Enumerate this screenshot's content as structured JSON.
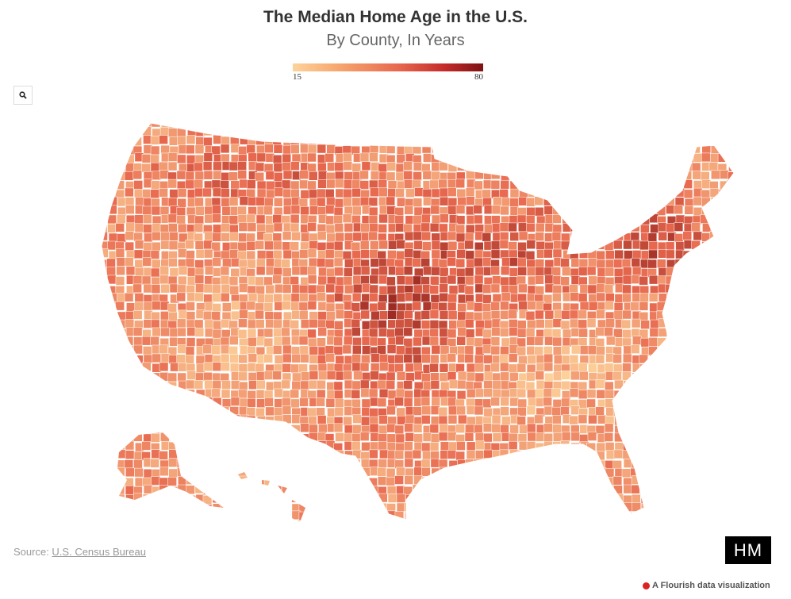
{
  "header": {
    "title": "The Median Home Age in the U.S.",
    "subtitle": "By County, In Years"
  },
  "legend": {
    "min_label": "15",
    "max_label": "80"
  },
  "controls": {
    "zoom_icon": "search-icon"
  },
  "footer": {
    "source_prefix": "Source: ",
    "source_link": "U.S. Census Bureau",
    "logo": "HM",
    "credit": "A Flourish data visualization"
  },
  "chart_data": {
    "type": "choropleth",
    "title": "The Median Home Age in the U.S.",
    "subtitle": "By County, In Years",
    "geography": "US counties",
    "color_scale": {
      "min": 15,
      "max": 80,
      "colors": [
        "#fdd39a",
        "#e8694f",
        "#7e1212"
      ]
    },
    "no_data_color": "#e6e6e6"
  }
}
